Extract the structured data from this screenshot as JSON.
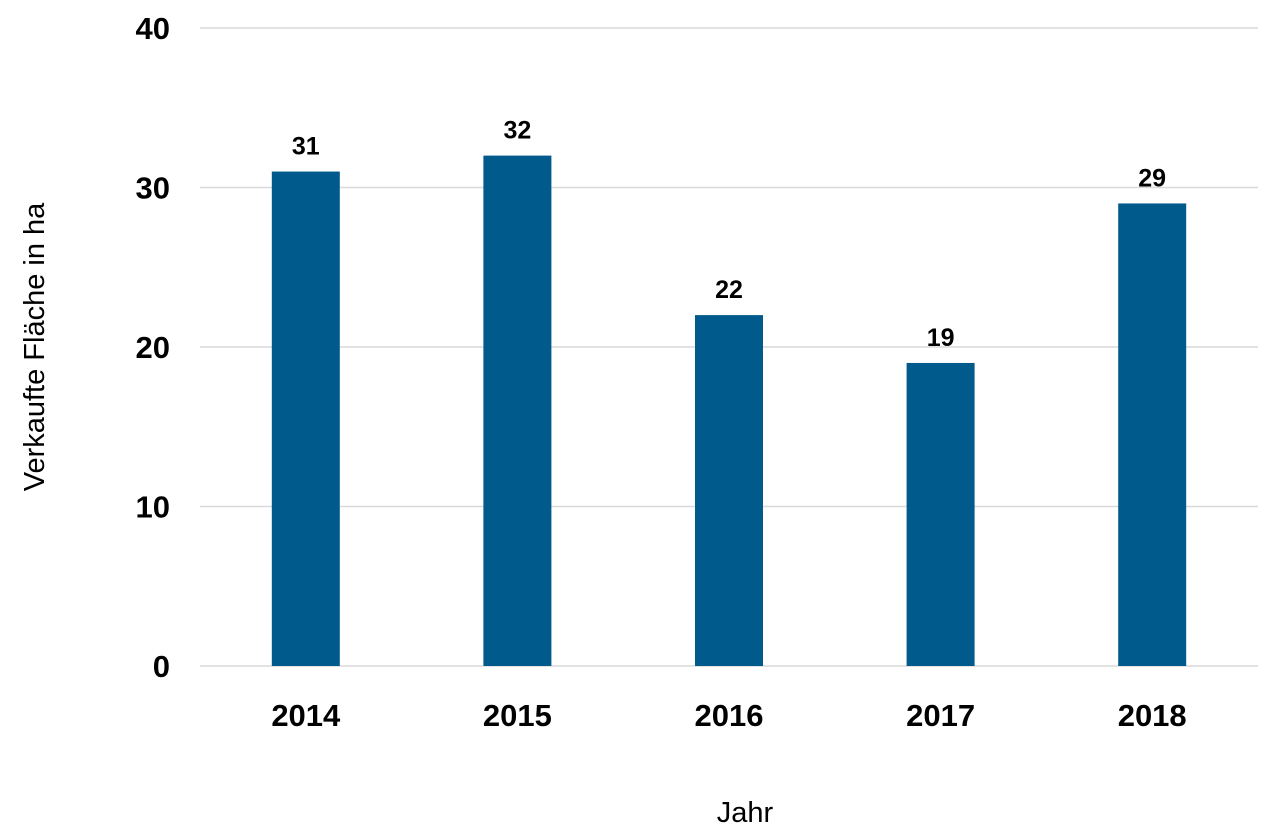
{
  "chart_data": {
    "type": "bar",
    "categories": [
      "2014",
      "2015",
      "2016",
      "2017",
      "2018"
    ],
    "values": [
      31,
      32,
      22,
      19,
      29
    ],
    "data_labels": [
      "31",
      "32",
      "22",
      "19",
      "29"
    ],
    "title": "",
    "xlabel": "Jahr",
    "ylabel": "Verkaufte Fläche in ha",
    "ylim": [
      0,
      40
    ],
    "yticks": [
      0,
      10,
      20,
      30,
      40
    ],
    "ytick_labels": [
      "0",
      "10",
      "20",
      "30",
      "40"
    ],
    "grid": true,
    "legend": "none",
    "bar_color": "#005a8c",
    "grid_color": "#d9d9d9"
  }
}
